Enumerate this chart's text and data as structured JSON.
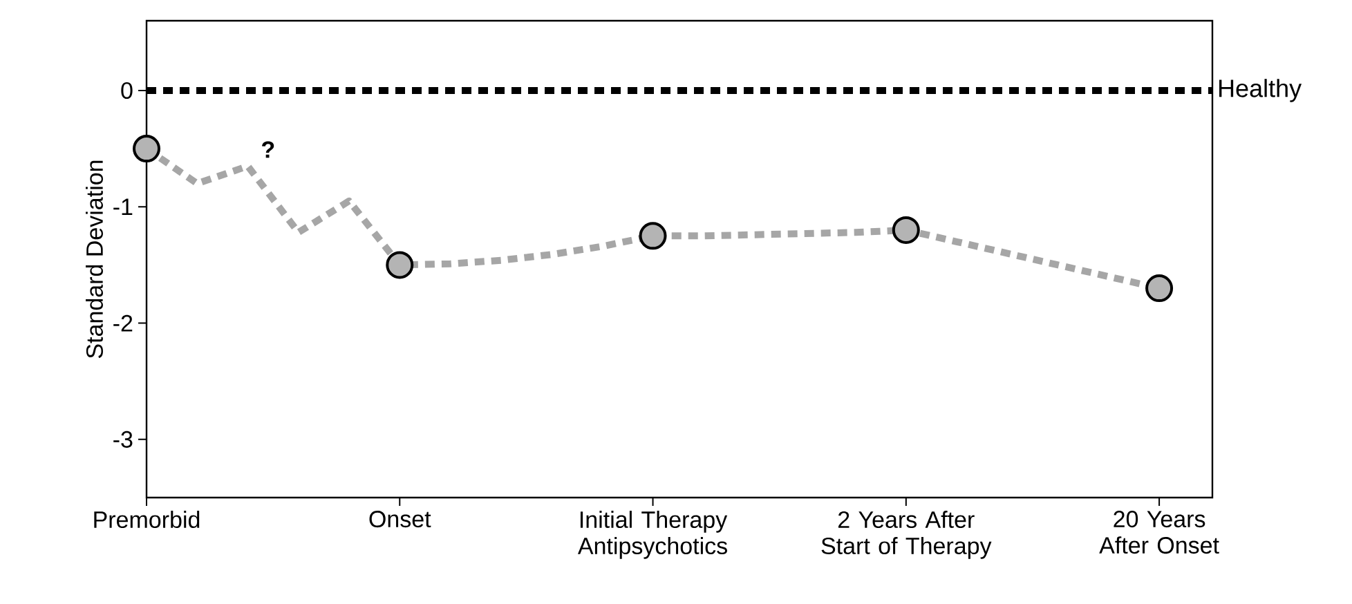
{
  "chart_data": {
    "type": "line",
    "ylabel": "Standard Deviation",
    "ylim": [
      -3.5,
      0.6
    ],
    "categories": [
      "Premorbid",
      null,
      null,
      null,
      null,
      "Onset",
      null,
      null,
      null,
      null,
      "Initial Therapy Antipsychotics",
      null,
      null,
      null,
      null,
      "2 Years After Start of Therapy",
      null,
      null,
      null,
      null,
      "20 Years After Onset"
    ],
    "yticks": [
      0,
      -1,
      -2,
      -3
    ],
    "series": [
      {
        "color": "#a6a6a6",
        "marker": "none",
        "line_style": "dashed",
        "values": [
          -0.5,
          -0.8,
          -0.65,
          -1.22,
          -0.95,
          -1.5,
          -1.49,
          -1.46,
          -1.41,
          -1.34,
          -1.25,
          -1.25,
          -1.24,
          -1.23,
          -1.22,
          -1.2,
          -1.3,
          -1.4,
          -1.5,
          -1.6,
          -1.7
        ]
      },
      {
        "type": "scatter",
        "color": "#b4b4b4",
        "marker": "circle",
        "values": [
          -0.5,
          null,
          null,
          null,
          null,
          -1.5,
          null,
          null,
          null,
          null,
          -1.25,
          null,
          null,
          null,
          null,
          -1.2,
          null,
          null,
          null,
          null,
          -1.7
        ]
      }
    ],
    "ref_lines": [
      {
        "axis": "y",
        "value": 0,
        "label": "Healthy",
        "color": "#000000",
        "line_style": "dashed"
      }
    ],
    "annotations": [
      "?"
    ]
  }
}
